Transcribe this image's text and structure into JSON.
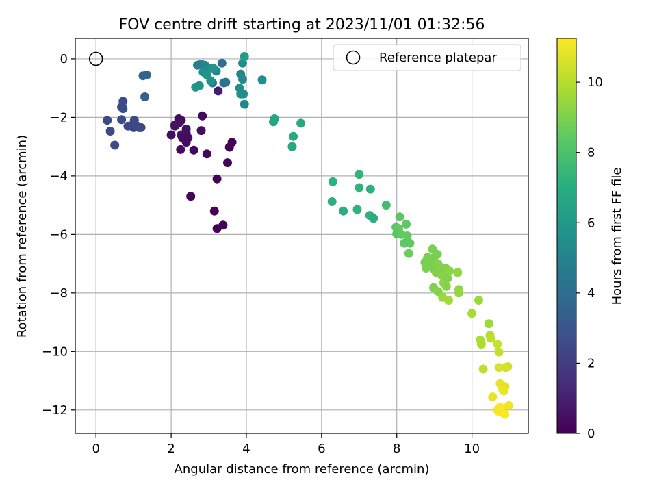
{
  "chart_data": {
    "type": "scatter",
    "title": "FOV centre drift starting at 2023/11/01 01:32:56",
    "xlabel": "Angular distance from reference (arcmin)",
    "ylabel": "Rotation from reference (arcmin)",
    "xlim": [
      -0.55,
      11.5
    ],
    "ylim": [
      -12.8,
      0.7
    ],
    "xticks": [
      0,
      2,
      4,
      6,
      8,
      10
    ],
    "yticks": [
      0,
      -2,
      -4,
      -6,
      -8,
      -10,
      -12
    ],
    "grid": true,
    "legend": {
      "position": "upper right",
      "entries": [
        "Reference platepar"
      ]
    },
    "reference_point": {
      "x": 0,
      "y": 0,
      "label": "Reference platepar"
    },
    "colorbar": {
      "label": "Hours from first FF file",
      "colormap": "viridis",
      "range": [
        0,
        11.25
      ],
      "ticks": [
        0,
        2,
        4,
        6,
        8,
        10
      ]
    },
    "series": [
      {
        "x": [
          2.2,
          2.27,
          2.83,
          2.0,
          2.1,
          2.1,
          2.2,
          2.27,
          2.4,
          2.4,
          2.8,
          2.3,
          2.4,
          2.4,
          2.45,
          2.25,
          2.6,
          2.95,
          3.62,
          3.55,
          3.5,
          2.52,
          3.15,
          3.22,
          3.38,
          3.22,
          1.0,
          1.2,
          0.72,
          0.72,
          0.38,
          0.5,
          0.3,
          0.68,
          0.85,
          0.95,
          1.1,
          1.15,
          1.02,
          0.68,
          1.25,
          1.35,
          1.3,
          3.25,
          2.65,
          2.75,
          2.8,
          2.9,
          3.0,
          3.2,
          2.7,
          2.85,
          3.12,
          3.1,
          3.05,
          2.95,
          3.35,
          3.45,
          3.4,
          3.85,
          3.9,
          3.9,
          3.95,
          3.82,
          3.85,
          3.95,
          4.42,
          3.92,
          4.72,
          4.75,
          5.25,
          5.45,
          5.22,
          6.3,
          6.28,
          7.0,
          7.0,
          6.58,
          6.95,
          7.3,
          7.28,
          7.38,
          7.72,
          8.08,
          7.98,
          8.25,
          8.05,
          8.0,
          8.12,
          8.28,
          8.35,
          8.2,
          8.32,
          8.95,
          8.98,
          8.82,
          9.08,
          8.75,
          8.9,
          8.82,
          8.78,
          9.02,
          9.0,
          9.05,
          9.1,
          9.15,
          9.3,
          9.4,
          9.2,
          9.25,
          9.35,
          9.32,
          8.98,
          9.1,
          9.62,
          9.65,
          9.65,
          9.22,
          9.38,
          10.18,
          10.0,
          10.45,
          10.22,
          10.25,
          10.48,
          10.5,
          10.3,
          10.68,
          10.72,
          10.95,
          10.9,
          10.72,
          10.75,
          10.88,
          10.85,
          10.82,
          10.55,
          10.8,
          10.98,
          10.75,
          10.68,
          10.72,
          10.88
        ],
        "y": [
          -2.05,
          -2.1,
          -1.95,
          -2.6,
          -2.3,
          -2.25,
          -2.2,
          -2.6,
          -2.4,
          -2.55,
          -2.45,
          -2.7,
          -2.75,
          -2.85,
          -2.7,
          -3.1,
          -3.12,
          -3.25,
          -2.85,
          -3.02,
          -3.55,
          -4.7,
          -5.2,
          -5.8,
          -5.68,
          -4.1,
          -2.35,
          -2.35,
          -1.45,
          -1.7,
          -2.47,
          -2.95,
          -2.1,
          -1.65,
          -2.3,
          -2.28,
          -2.3,
          -2.35,
          -2.1,
          -2.08,
          -0.58,
          -0.55,
          -1.3,
          -1.1,
          -0.97,
          -0.92,
          -0.18,
          -0.22,
          -0.32,
          -0.42,
          -0.22,
          -0.45,
          -0.32,
          -0.82,
          -0.75,
          -0.55,
          -0.15,
          -0.8,
          -0.82,
          -0.52,
          -0.7,
          -0.15,
          0.08,
          -1.0,
          -1.2,
          -1.55,
          -0.72,
          -1.2,
          -2.15,
          -2.05,
          -2.65,
          -2.2,
          -3.0,
          -4.2,
          -4.88,
          -3.95,
          -4.4,
          -5.2,
          -5.15,
          -4.45,
          -5.35,
          -5.45,
          -5.0,
          -5.4,
          -5.75,
          -5.65,
          -5.8,
          -5.98,
          -6.0,
          -6.05,
          -6.3,
          -6.3,
          -6.65,
          -6.5,
          -6.8,
          -6.78,
          -6.68,
          -6.95,
          -6.9,
          -7.05,
          -7.15,
          -7.15,
          -7.2,
          -7.3,
          -7.0,
          -7.15,
          -7.15,
          -7.25,
          -7.4,
          -7.65,
          -7.5,
          -7.78,
          -7.82,
          -7.95,
          -7.3,
          -7.88,
          -8.0,
          -8.15,
          -8.25,
          -8.25,
          -8.7,
          -9.05,
          -9.6,
          -9.75,
          -9.45,
          -9.55,
          -10.6,
          -9.75,
          -10.02,
          -10.52,
          -10.55,
          -10.55,
          -11.1,
          -11.2,
          -11.35,
          -11.3,
          -11.55,
          -11.95,
          -11.85,
          -11.9,
          -12.0,
          -12.05,
          -12.15
        ],
        "hours": [
          0.3,
          0.3,
          0.3,
          0.45,
          0.5,
          0.55,
          0.6,
          0.6,
          0.55,
          0.5,
          0.45,
          0.4,
          0.4,
          0.4,
          0.35,
          0.3,
          0.25,
          0.2,
          0.1,
          0.1,
          0.15,
          0.2,
          0.05,
          0.05,
          0.05,
          0.1,
          2.35,
          2.45,
          2.55,
          2.65,
          2.55,
          2.55,
          2.5,
          2.6,
          2.45,
          2.4,
          2.45,
          2.5,
          2.5,
          2.6,
          3.7,
          3.7,
          3.6,
          0.9,
          5.95,
          5.85,
          5.0,
          5.1,
          5.35,
          5.2,
          4.9,
          5.6,
          5.8,
          4.6,
          5.75,
          5.85,
          4.15,
          4.4,
          4.3,
          5.0,
          5.25,
          5.6,
          6.25,
          5.5,
          5.65,
          5.2,
          5.6,
          5.5,
          6.6,
          6.7,
          6.8,
          6.85,
          6.8,
          7.2,
          7.15,
          7.4,
          7.3,
          7.1,
          7.3,
          7.2,
          7.3,
          7.1,
          7.8,
          8.4,
          8.3,
          8.45,
          8.55,
          8.35,
          8.6,
          8.6,
          8.5,
          8.45,
          8.7,
          9.0,
          8.9,
          8.95,
          8.95,
          8.9,
          8.95,
          8.9,
          9.0,
          9.0,
          8.95,
          9.1,
          9.2,
          9.1,
          9.1,
          9.3,
          9.2,
          9.25,
          9.1,
          9.2,
          9.05,
          9.15,
          9.4,
          9.45,
          9.5,
          9.55,
          9.7,
          9.55,
          9.75,
          9.6,
          9.85,
          9.9,
          10.0,
          10.15,
          10.2,
          10.3,
          10.3,
          10.4,
          10.5,
          10.6,
          10.85,
          10.8,
          10.95,
          10.9,
          10.9,
          10.95,
          11.0,
          11.2,
          11.1,
          11.15,
          11.2
        ]
      }
    ]
  }
}
